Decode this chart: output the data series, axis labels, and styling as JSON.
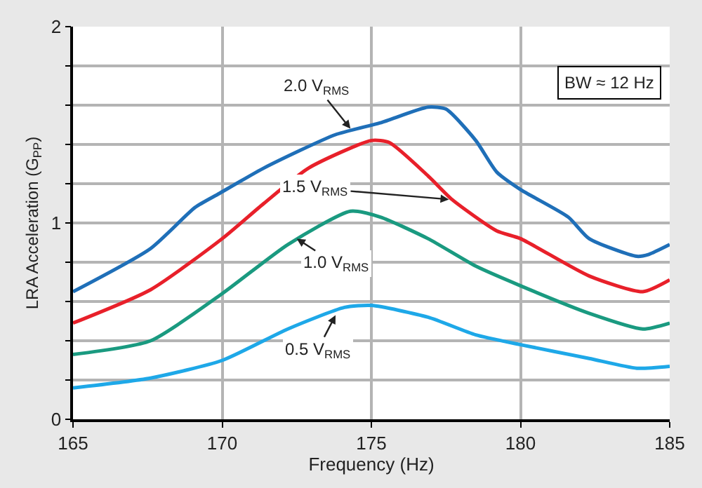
{
  "chart_data": {
    "type": "line",
    "xlabel": "Frequency (Hz)",
    "ylabel": "LRA Acceleration (G$_{PP}$)",
    "xlim": [
      165,
      185
    ],
    "ylim": [
      0,
      2
    ],
    "xticks": [
      165,
      170,
      175,
      180,
      185
    ],
    "yticks": [
      0,
      {
        "value": 0.2,
        "label": null
      },
      {
        "value": 0.4,
        "label": null
      },
      {
        "value": 0.6,
        "label": null
      },
      {
        "value": 0.8,
        "label": null
      },
      1,
      {
        "value": 1.2,
        "label": null
      },
      {
        "value": 1.4,
        "label": null
      },
      {
        "value": 1.6,
        "label": null
      },
      {
        "value": 1.8,
        "label": null
      },
      2
    ],
    "grid": true,
    "marker": "none",
    "line_style": "solid",
    "series": [
      {
        "color": "#1f6fb8",
        "x": [
          165,
          167.6,
          169.1,
          169.9,
          171.4,
          173.8,
          175.3,
          176.9,
          177.5,
          178.5,
          179.2,
          180.0,
          181.6,
          182.3,
          183.9,
          184.3,
          185
        ],
        "values": [
          0.65,
          0.87,
          1.08,
          1.15,
          1.28,
          1.45,
          1.51,
          1.59,
          1.58,
          1.42,
          1.26,
          1.17,
          1.03,
          0.92,
          0.83,
          0.84,
          0.89
        ]
      },
      {
        "color": "#e8202a",
        "x": [
          165,
          167.6,
          170.0,
          171.4,
          172.9,
          175.0,
          175.6,
          176.9,
          177.7,
          179.2,
          180.0,
          182.3,
          184.1,
          185
        ],
        "values": [
          0.49,
          0.66,
          0.92,
          1.1,
          1.28,
          1.42,
          1.41,
          1.24,
          1.12,
          0.96,
          0.92,
          0.73,
          0.65,
          0.71
        ]
      },
      {
        "color": "#1a9a80",
        "x": [
          165,
          167.6,
          170.0,
          172.2,
          174.3,
          175.3,
          176.9,
          178.5,
          180.0,
          182.3,
          184.1,
          185
        ],
        "values": [
          0.33,
          0.4,
          0.64,
          0.89,
          1.06,
          1.03,
          0.92,
          0.78,
          0.68,
          0.54,
          0.46,
          0.49
        ]
      },
      {
        "color": "#1ea8e8",
        "x": [
          165,
          167.6,
          170.0,
          172.2,
          174.1,
          175.0,
          176.9,
          178.5,
          180.0,
          182.3,
          183.9,
          185
        ],
        "values": [
          0.16,
          0.21,
          0.3,
          0.46,
          0.57,
          0.58,
          0.52,
          0.43,
          0.38,
          0.31,
          0.26,
          0.27
        ]
      }
    ],
    "annotations": [
      {
        "text": "2.0 V$_{RMS}$",
        "x": 174.3,
        "y": 1.48
      },
      {
        "text": "1.5 V$_{RMS}$",
        "x": 177.6,
        "y": 1.12
      },
      {
        "text": "1.0 V$_{RMS}$",
        "x": 172.5,
        "y": 0.92
      },
      {
        "text": "0.5 V$_{RMS}$",
        "x": 173.8,
        "y": 0.53
      },
      "BW ≈ 12 Hz"
    ]
  }
}
